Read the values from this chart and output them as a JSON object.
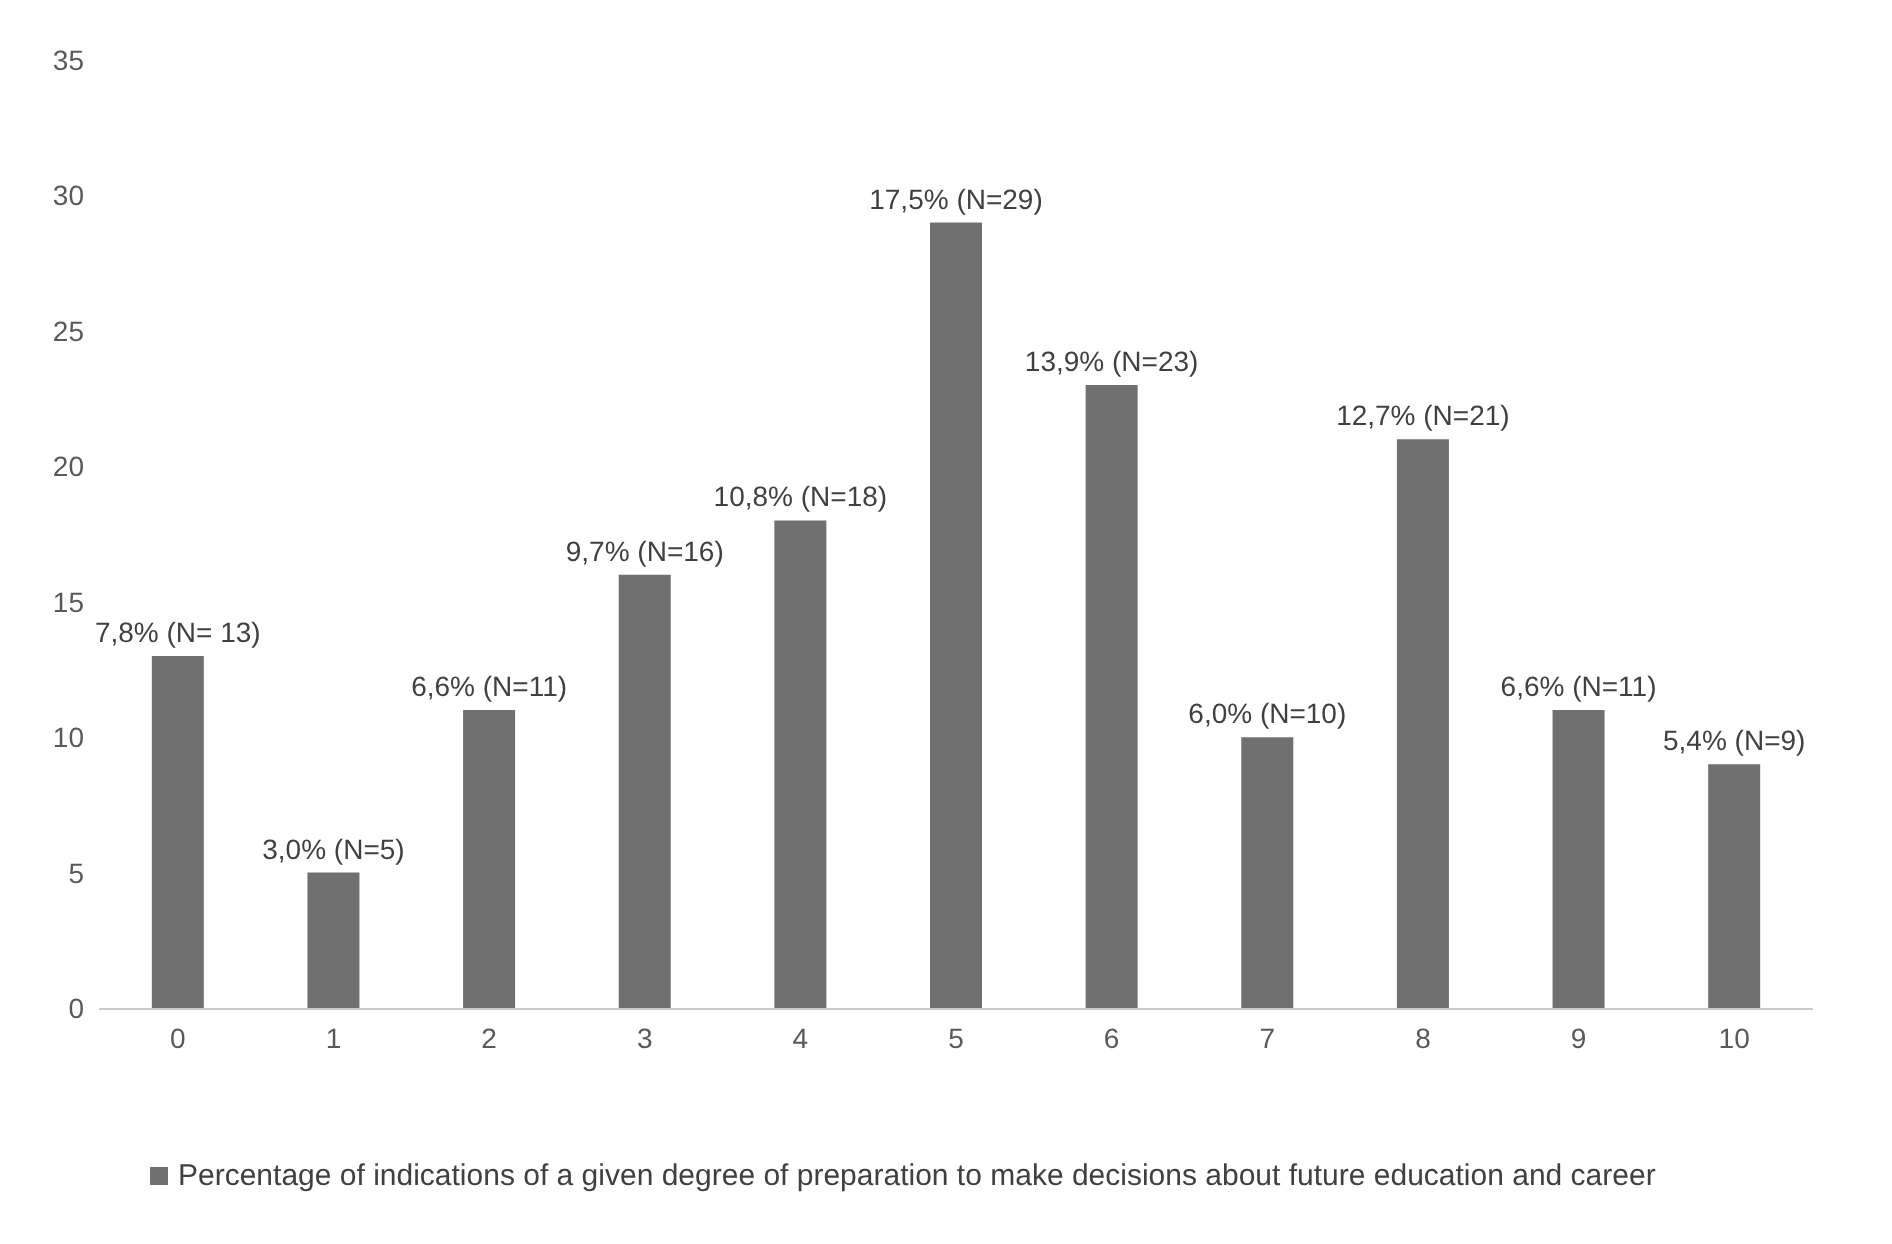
{
  "chart_data": {
    "type": "bar",
    "categories": [
      "0",
      "1",
      "2",
      "3",
      "4",
      "5",
      "6",
      "7",
      "8",
      "9",
      "10"
    ],
    "series": [
      {
        "name": "Percentage of indications of a given degree of preparation to make decisions about future education and career",
        "color": "#707070",
        "values": [
          13,
          5,
          11,
          16,
          18,
          29,
          23,
          10,
          21,
          11,
          9
        ],
        "value_labels": [
          "7,8% (N= 13)",
          "3,0% (N=5)",
          "6,6% (N=11)",
          "9,7% (N=16)",
          "10,8% (N=18)",
          "17,5% (N=29)",
          "13,9% (N=23)",
          "6,0% (N=10)",
          "12,7% (N=21)",
          "6,6% (N=11)",
          "5,4% (N=9)"
        ]
      }
    ],
    "ylim": [
      0,
      35
    ],
    "yticks": [
      0,
      5,
      10,
      15,
      20,
      25,
      30,
      35
    ],
    "grid": false,
    "legend": "bottom"
  }
}
